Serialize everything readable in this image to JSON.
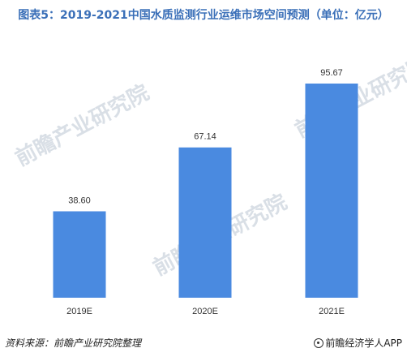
{
  "chart_data": {
    "type": "bar",
    "title": "图表5：2019-2021中国水质监测行业运维市场空间预测（单位：亿元）",
    "categories": [
      "2019E",
      "2020E",
      "2021E"
    ],
    "values": [
      38.6,
      67.14,
      95.67
    ],
    "value_labels": [
      "38.60",
      "67.14",
      "95.67"
    ],
    "ylim": [
      0,
      100
    ],
    "grid": false,
    "bar_color": "#4a8ae0",
    "xlabel": "",
    "ylabel": ""
  },
  "watermark": {
    "text": "前瞻产业研究院"
  },
  "footer": {
    "source": "资料来源：前瞻产业研究院整理",
    "brand": "前瞻经济学人APP"
  }
}
